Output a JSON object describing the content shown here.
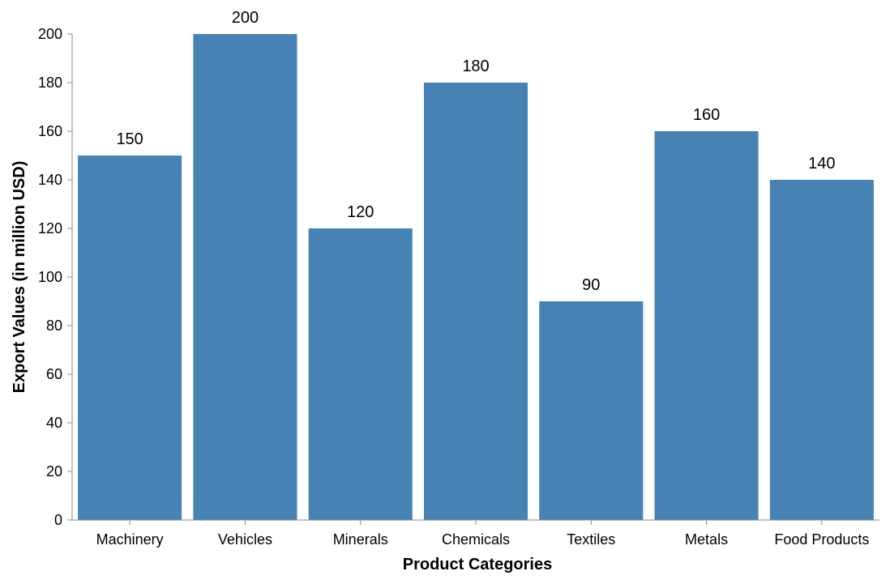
{
  "chart_data": {
    "type": "bar",
    "title": "",
    "categories": [
      "Machinery",
      "Vehicles",
      "Minerals",
      "Chemicals",
      "Textiles",
      "Metals",
      "Food Products"
    ],
    "values": [
      150,
      200,
      120,
      180,
      90,
      160,
      140
    ],
    "xlabel": "Product Categories",
    "ylabel": "Export Values (in million USD)",
    "ylim": [
      0,
      200
    ],
    "yticks": [
      0,
      20,
      40,
      60,
      80,
      100,
      120,
      140,
      160,
      180,
      200
    ],
    "grid": false,
    "legend": "none",
    "data_labels": true,
    "bar_color": "#4682b4"
  }
}
